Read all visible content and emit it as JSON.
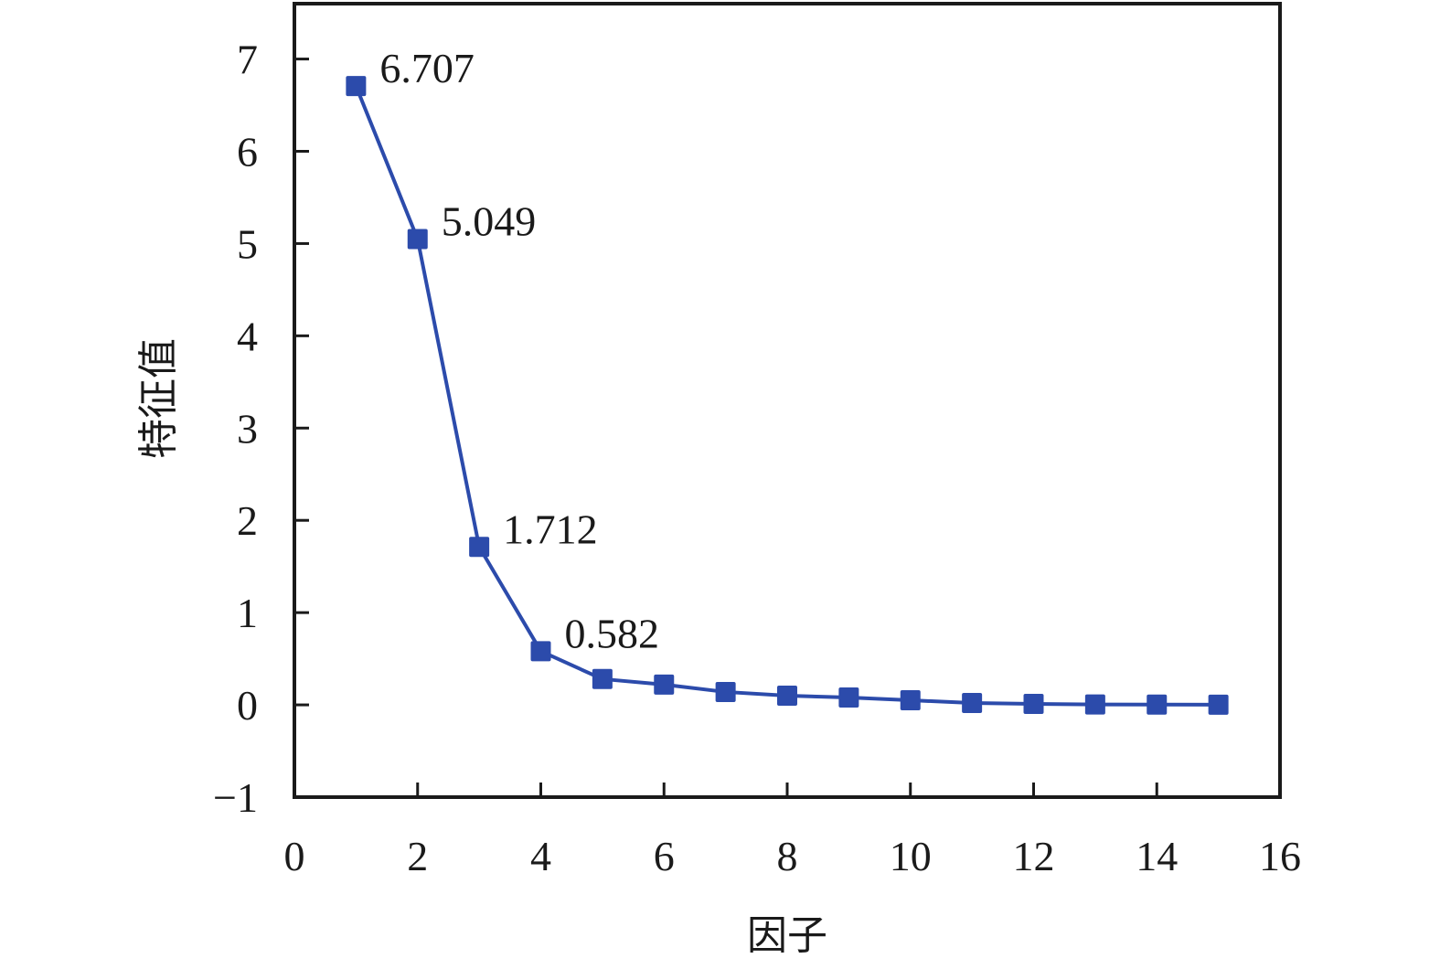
{
  "chart_data": {
    "type": "line",
    "title": "",
    "xlabel": "因子",
    "ylabel": "特征值",
    "xlim": [
      0,
      16
    ],
    "ylim": [
      -1,
      7.5
    ],
    "xticks": [
      0,
      2,
      4,
      6,
      8,
      10,
      12,
      14,
      16
    ],
    "yticks": [
      -1,
      0,
      1,
      2,
      3,
      4,
      5,
      6,
      7
    ],
    "ytick_labels": [
      "−1",
      "0",
      "1",
      "2",
      "3",
      "4",
      "5",
      "6",
      "7"
    ],
    "grid": false,
    "legend": "none",
    "series": [
      {
        "color": "#2c4bab",
        "marker": "square",
        "x": [
          1,
          2,
          3,
          4,
          5,
          6,
          7,
          8,
          9,
          10,
          11,
          12,
          13,
          14,
          15
        ],
        "y": [
          6.707,
          5.049,
          1.712,
          0.582,
          0.28,
          0.22,
          0.14,
          0.1,
          0.08,
          0.05,
          0.02,
          0.01,
          0.005,
          0.003,
          0.002
        ]
      }
    ],
    "annotations": [
      {
        "text": "6.707",
        "x": 1,
        "y": 6.707
      },
      {
        "text": "5.049",
        "x": 2,
        "y": 5.049
      },
      {
        "text": "1.712",
        "x": 3,
        "y": 1.712
      },
      {
        "text": "0.582",
        "x": 4,
        "y": 0.582
      }
    ]
  }
}
